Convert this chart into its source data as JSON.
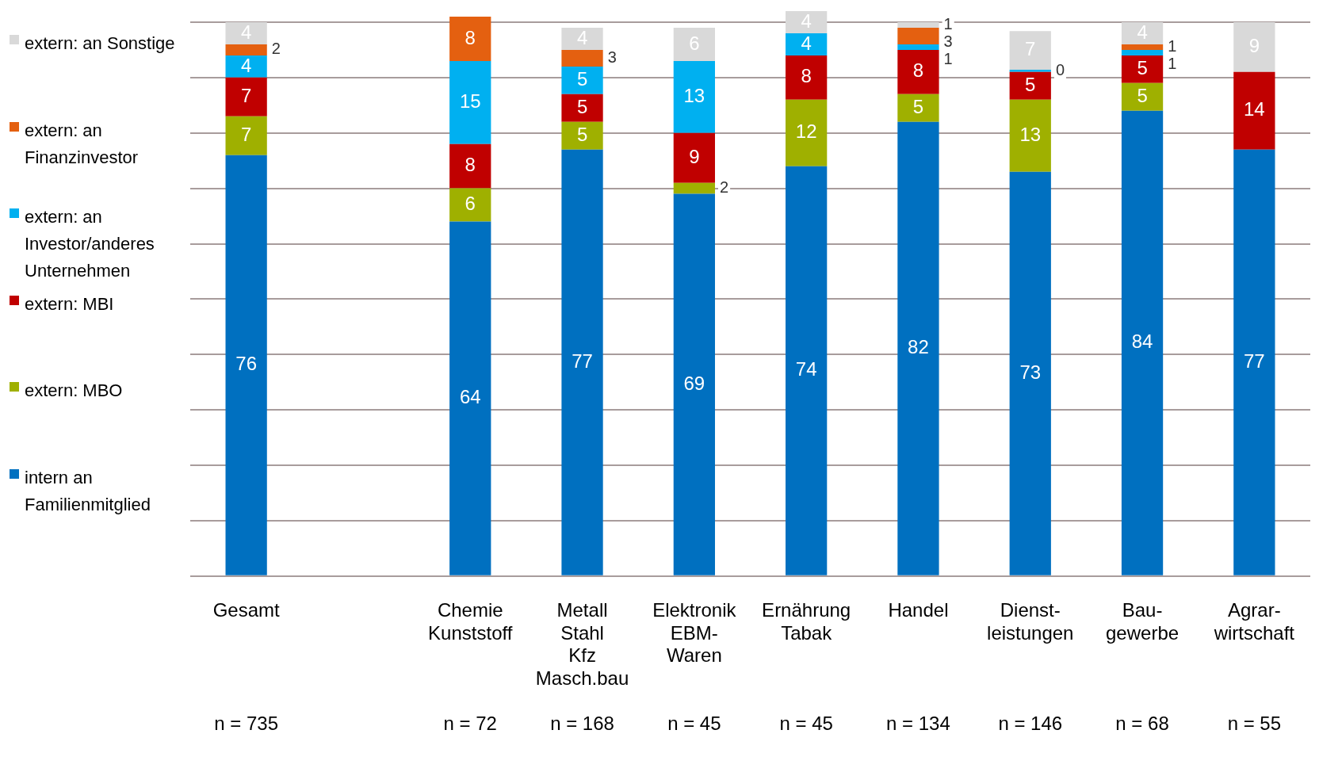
{
  "chart_data": {
    "type": "bar",
    "stacked": true,
    "legend": "left",
    "grid": "y",
    "tick_labels": "x",
    "categories": [
      "Gesamt",
      null,
      "Chemie\nKunststoff",
      "Metall\nStahl\nKfz\nMasch.bau",
      "Elektronik\nEBM-\nWaren",
      "Ernährung\nTabak",
      "Handel",
      "Dienst-\nleistungen",
      "Bau-\ngewerbe",
      "Agrar-\nwirtschaft"
    ],
    "ylim": [
      0,
      102
    ],
    "yticks": [
      {
        "value": 0,
        "label": null
      },
      {
        "value": 10,
        "label": null
      },
      {
        "value": 20,
        "label": null
      },
      {
        "value": 30,
        "label": null
      },
      {
        "value": 40,
        "label": null
      },
      {
        "value": 50,
        "label": null
      },
      {
        "value": 60,
        "label": null
      },
      {
        "value": 70,
        "label": null
      },
      {
        "value": 80,
        "label": null
      },
      {
        "value": 90,
        "label": null
      },
      {
        "value": 100,
        "label": null
      }
    ],
    "series": [
      {
        "name": "intern an Familienmitglied",
        "color": "#0070c0",
        "values": [
          76,
          null,
          64,
          77,
          69,
          74,
          82,
          73,
          84,
          77
        ],
        "value_labels": [
          "76",
          null,
          "64",
          "77",
          "69",
          "74",
          "82",
          "73",
          "84",
          "77"
        ]
      },
      {
        "name": "extern: MBO",
        "color": "#9fb000",
        "values": [
          7,
          null,
          6,
          5,
          2,
          12,
          5,
          13,
          5,
          null
        ],
        "value_labels": [
          "7",
          null,
          "6",
          "5",
          "2",
          "12",
          "5",
          "13",
          "5",
          null
        ]
      },
      {
        "name": "extern: MBI",
        "color": "#c00000",
        "values": [
          7,
          null,
          8,
          5,
          9,
          8,
          8,
          5,
          5,
          14
        ],
        "value_labels": [
          "7",
          null,
          "8",
          "5",
          "9",
          "8",
          "8",
          "5",
          "5",
          "14"
        ]
      },
      {
        "name": "extern: an Investor/anderes Unternehmen",
        "color": "#00b0f0",
        "values": [
          4,
          null,
          15,
          5,
          13,
          4,
          1,
          0.4,
          1,
          null
        ],
        "value_labels": [
          "4",
          null,
          "15",
          "5",
          "13",
          "4",
          "1",
          "0",
          "1",
          null
        ]
      },
      {
        "name": "extern: an Finanzinvestor",
        "color": "#e46010",
        "values": [
          2,
          null,
          8,
          3,
          null,
          null,
          3,
          null,
          1,
          null
        ],
        "value_labels": [
          "2",
          null,
          "8",
          "3",
          null,
          null,
          "3",
          null,
          "1",
          null
        ]
      },
      {
        "name": "extern: an Sonstige",
        "color": "#d9d9d9",
        "values": [
          4,
          null,
          null,
          4,
          6,
          4,
          1,
          7,
          4,
          9
        ],
        "value_labels": [
          "4",
          null,
          null,
          "4",
          "6",
          "4",
          "1",
          "7",
          "4",
          "9"
        ]
      }
    ],
    "annotations": [
      "n = 735",
      "n = 72",
      "n = 168",
      "n = 45",
      "n = 45",
      "n = 134",
      "n = 146",
      "n = 68",
      "n = 55"
    ]
  }
}
